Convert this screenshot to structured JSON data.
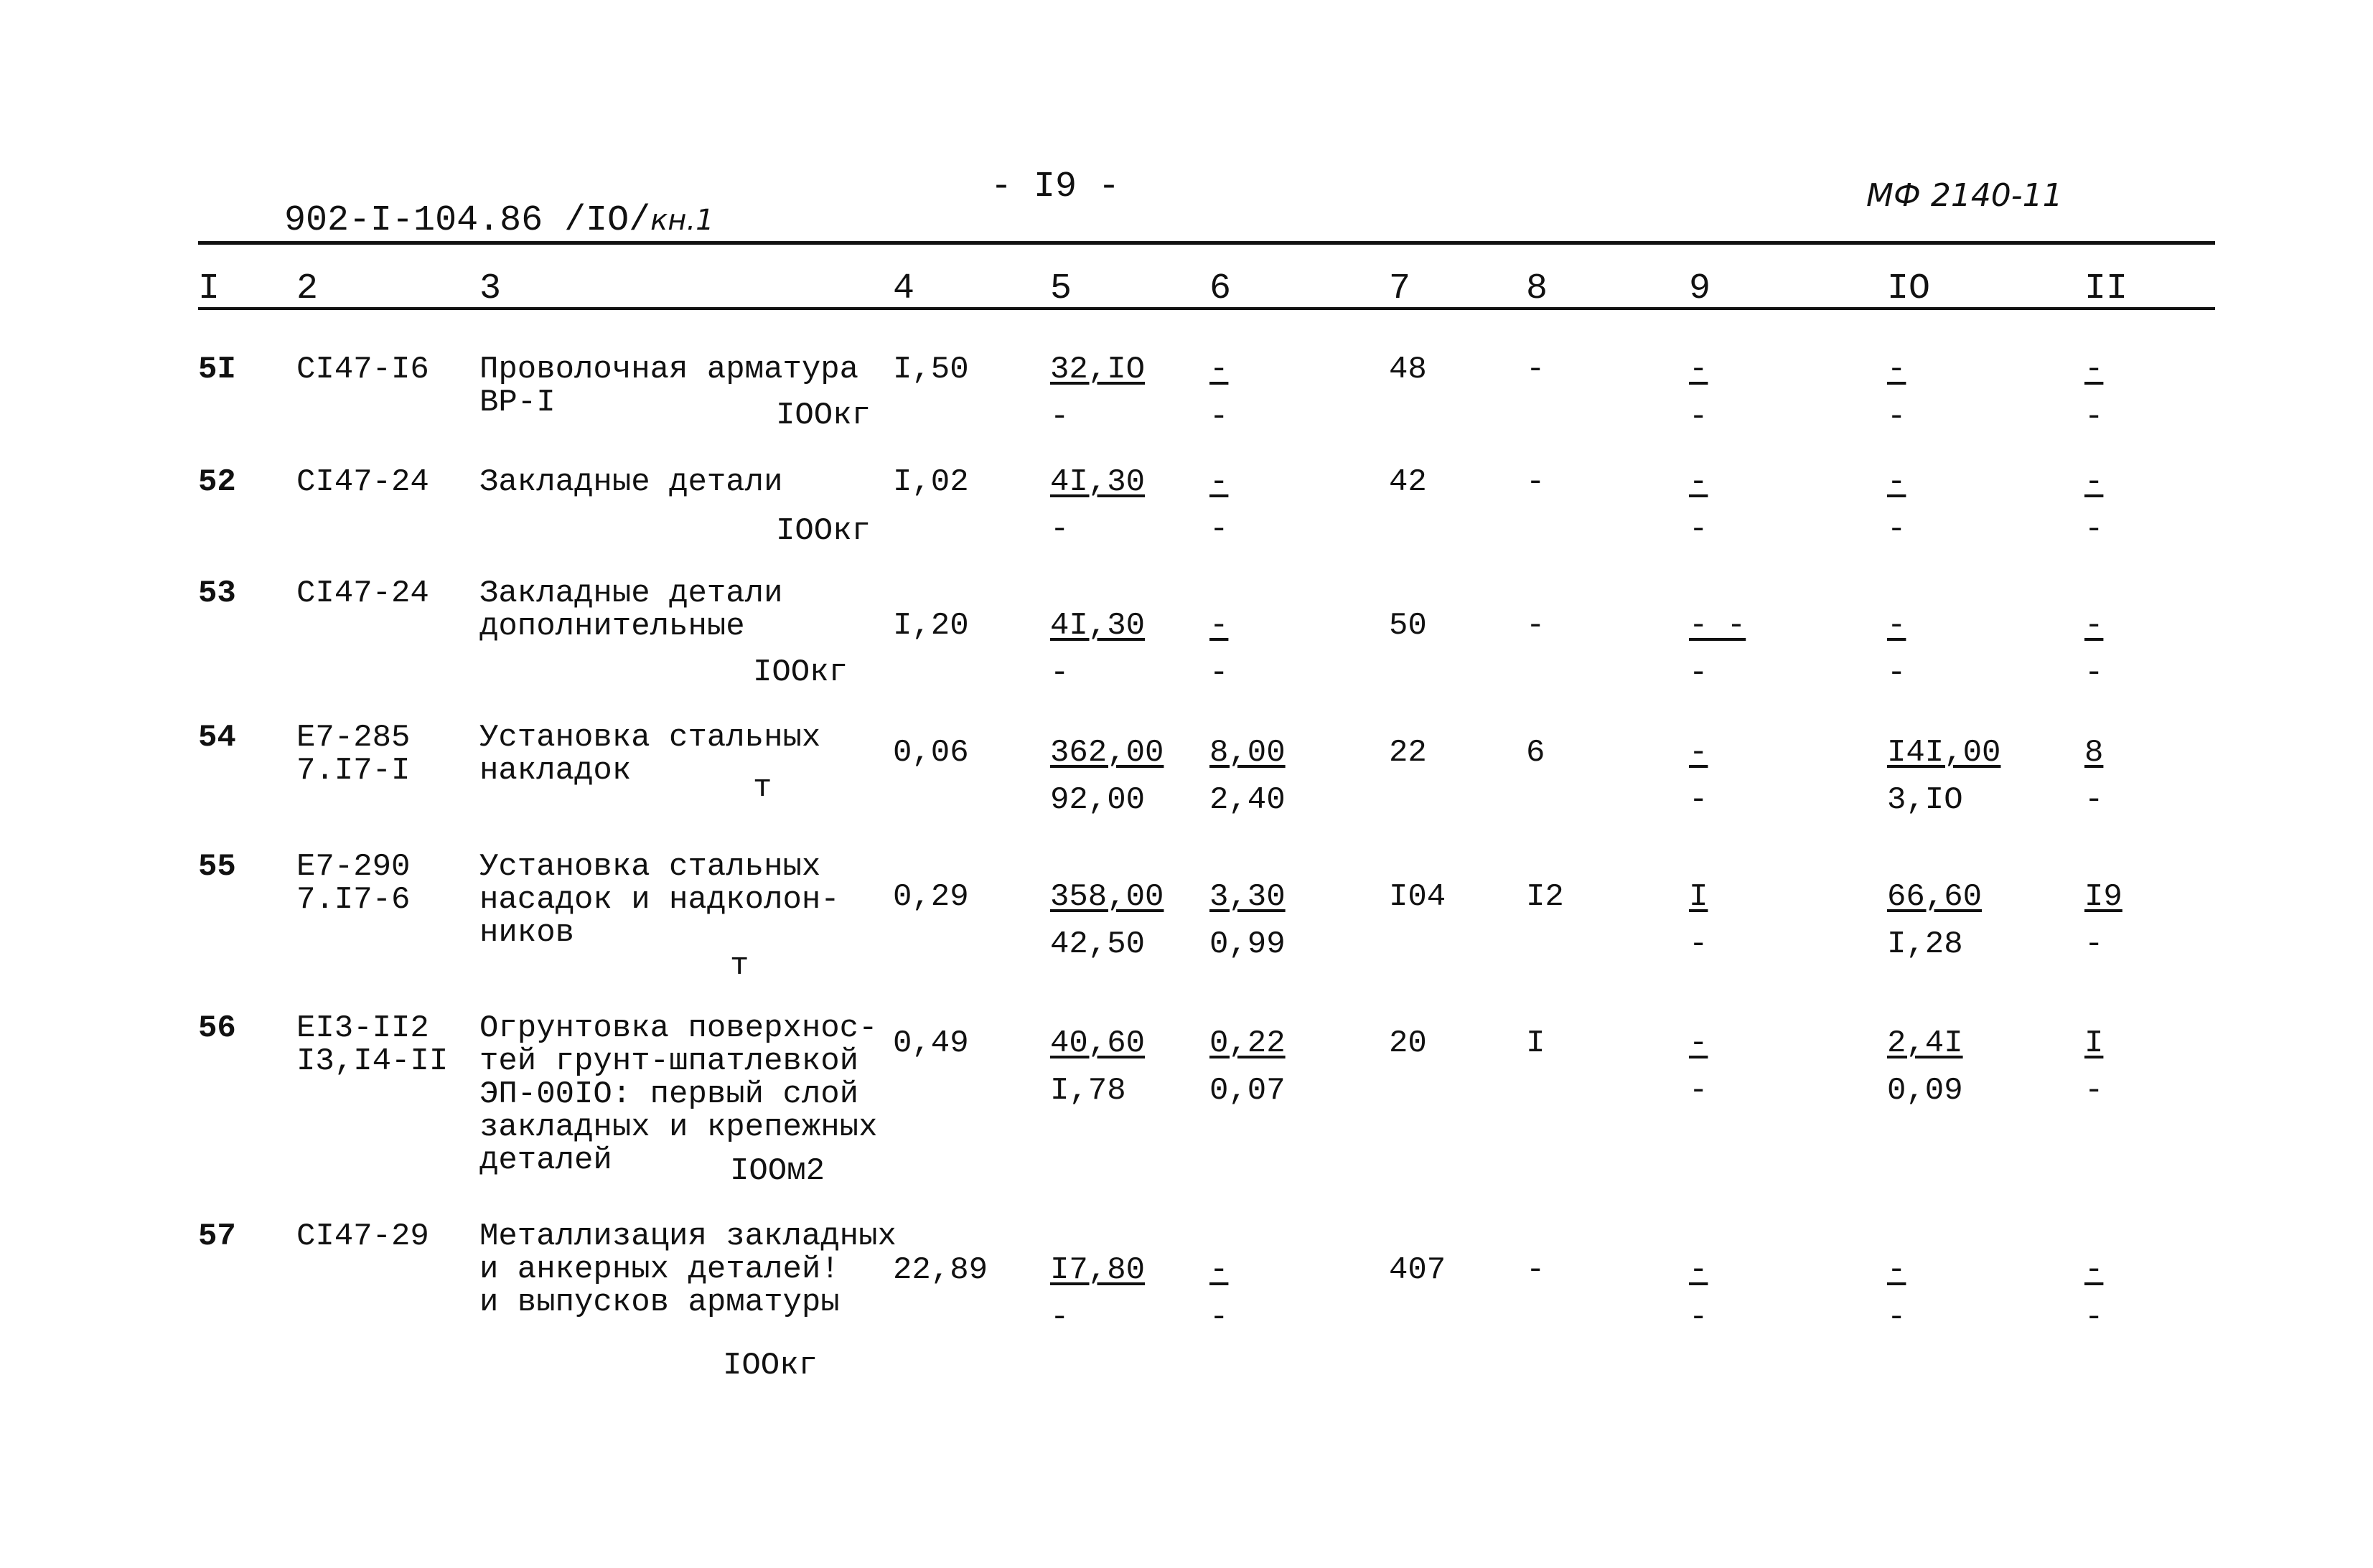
{
  "header": {
    "doc_code": "902-I-104.86",
    "album": "/IO/",
    "book": "кн.1",
    "page_number": "- I9 -",
    "stamp": "МФ 2140-11"
  },
  "columns": [
    "I",
    "2",
    "3",
    "4",
    "5",
    "6",
    "7",
    "8",
    "9",
    "IO",
    "II"
  ],
  "rows": [
    {
      "num": "5I",
      "code": [
        "CI47-I6"
      ],
      "desc": [
        "Проволочная арматура",
        "ВР-I"
      ],
      "unit": "IOOкг",
      "c4": "I,50",
      "c5": [
        "32,IO",
        "-"
      ],
      "c6": [
        "-",
        "-"
      ],
      "c7": "48",
      "c8": "-",
      "c9": [
        "-",
        "-"
      ],
      "c10": [
        "-",
        "-"
      ],
      "c11": [
        "-",
        "-"
      ]
    },
    {
      "num": "52",
      "code": [
        "CI47-24"
      ],
      "desc": [
        "Закладные детали"
      ],
      "unit": "IOOкг",
      "c4": "I,02",
      "c5": [
        "4I,30",
        "-"
      ],
      "c6": [
        "-",
        "-"
      ],
      "c7": "42",
      "c8": "-",
      "c9": [
        "-",
        "-"
      ],
      "c10": [
        "-",
        "-"
      ],
      "c11": [
        "-",
        "-"
      ]
    },
    {
      "num": "53",
      "code": [
        "CI47-24"
      ],
      "desc": [
        "Закладные детали",
        "дополнительные"
      ],
      "unit": "IOOкг",
      "c4": "I,20",
      "c5": [
        "4I,30",
        "-"
      ],
      "c6": [
        "-",
        "-"
      ],
      "c7": "50",
      "c8": "-",
      "c9": [
        "- -",
        "-"
      ],
      "c10": [
        "-",
        "-"
      ],
      "c11": [
        "-",
        "-"
      ]
    },
    {
      "num": "54",
      "code": [
        "E7-285",
        "7.I7-I"
      ],
      "desc": [
        "Установка стальных",
        "накладок"
      ],
      "unit": "т",
      "c4": "0,06",
      "c5": [
        "362,00",
        "92,00"
      ],
      "c6": [
        "8,00",
        "2,40"
      ],
      "c7": "22",
      "c8": "6",
      "c9": [
        "-",
        "-"
      ],
      "c10": [
        "I4I,00",
        "3,IO"
      ],
      "c11": [
        "8",
        "-"
      ]
    },
    {
      "num": "55",
      "code": [
        "E7-290",
        "7.I7-6"
      ],
      "desc": [
        "Установка стальных",
        "насадок и надколон-",
        "ников"
      ],
      "unit": "т",
      "c4": "0,29",
      "c5": [
        "358,00",
        "42,50"
      ],
      "c6": [
        "3,30",
        "0,99"
      ],
      "c7": "I04",
      "c8": "I2",
      "c9": [
        "I",
        "-"
      ],
      "c10": [
        "66,60",
        "I,28"
      ],
      "c11": [
        "I9",
        "-"
      ]
    },
    {
      "num": "56",
      "code": [
        "EI3-II2",
        "I3,I4-II"
      ],
      "desc": [
        "Огрунтовка поверхнос-",
        "тей грунт-шпатлевкой",
        "ЭП-00IO: первый слой",
        "закладных и крепежных",
        "деталей"
      ],
      "unit": "IOOм2",
      "c4": "0,49",
      "c5": [
        "40,60",
        "I,78"
      ],
      "c6": [
        "0,22",
        "0,07"
      ],
      "c7": "20",
      "c8": "I",
      "c9": [
        "-",
        "-"
      ],
      "c10": [
        "2,4I",
        "0,09"
      ],
      "c11": [
        "I",
        "-"
      ]
    },
    {
      "num": "57",
      "code": [
        "CI47-29"
      ],
      "desc": [
        "Металлизация закладных",
        "и анкерных деталей!",
        "и выпусков арматуры"
      ],
      "unit": "IOOкг",
      "c4": "22,89",
      "c5": [
        "I7,80",
        "-"
      ],
      "c6": [
        "-",
        "-"
      ],
      "c7": "407",
      "c8": "-",
      "c9": [
        "-",
        "-"
      ],
      "c10": [
        "-",
        "-"
      ],
      "c11": [
        "-",
        "-"
      ]
    }
  ]
}
